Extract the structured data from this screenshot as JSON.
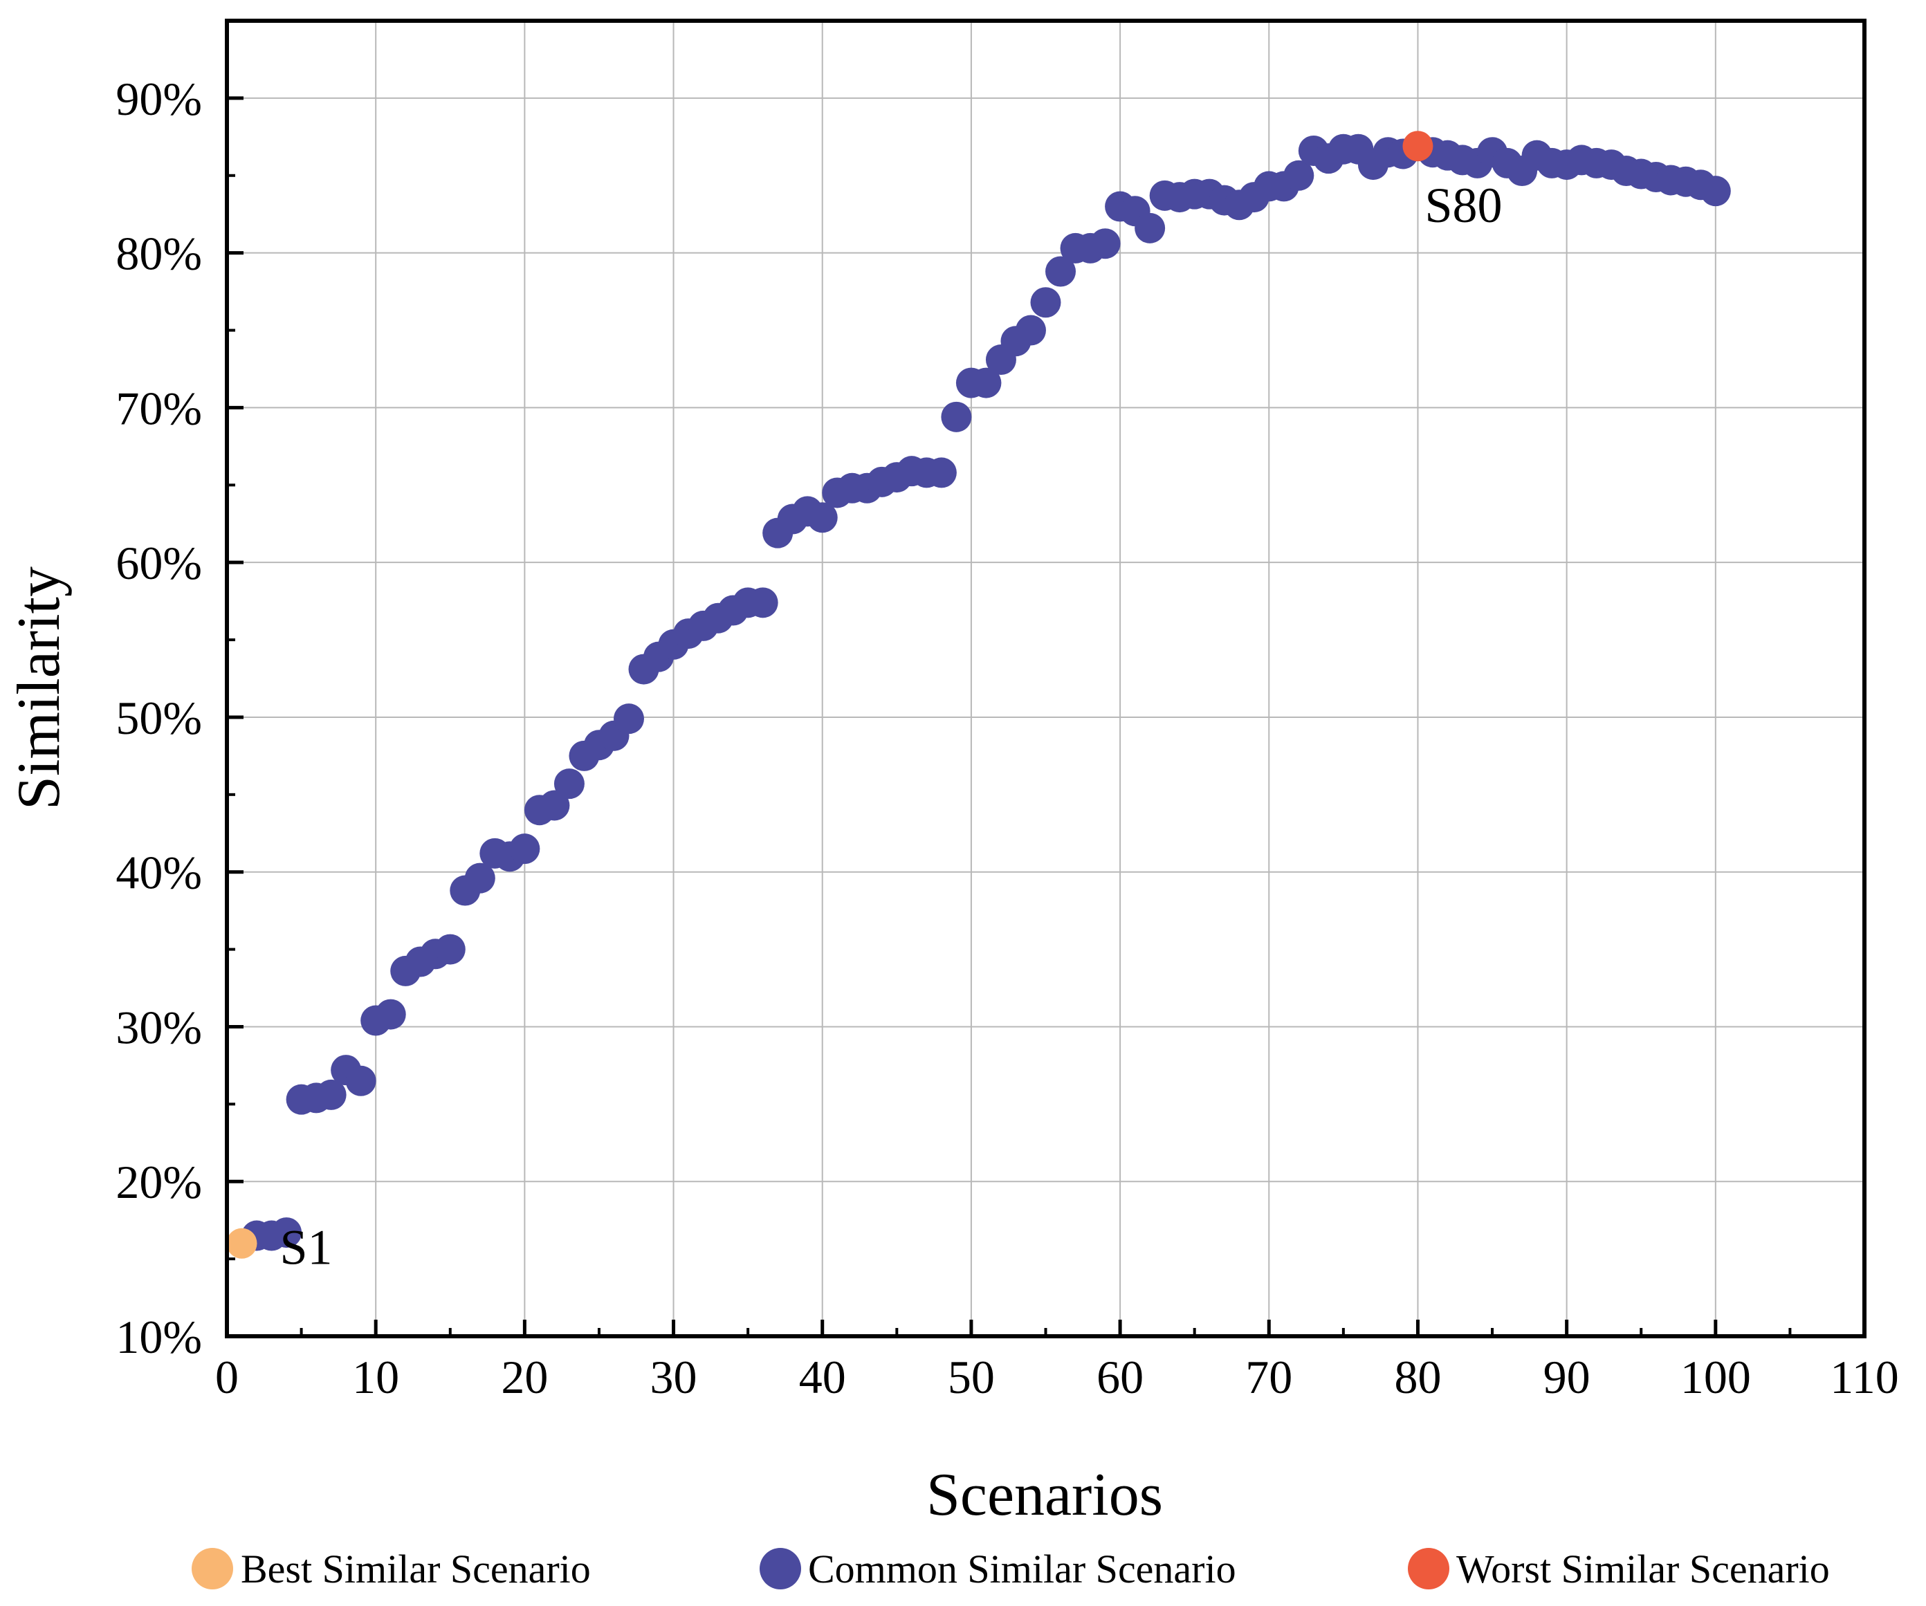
{
  "chart_data": {
    "type": "scatter",
    "title": "",
    "xlabel": "Scenarios",
    "ylabel": "Similarity",
    "xlim": [
      0,
      110
    ],
    "ylim": [
      10,
      95
    ],
    "xticks": [
      0,
      10,
      20,
      30,
      40,
      50,
      60,
      70,
      80,
      90,
      100,
      110
    ],
    "xtick_labels": [
      "0",
      "10",
      "20",
      "30",
      "40",
      "50",
      "60",
      "70",
      "80",
      "90",
      "100",
      "110"
    ],
    "yticks": [
      10,
      20,
      30,
      40,
      50,
      60,
      70,
      80,
      90
    ],
    "ytick_labels": [
      "10%",
      "20%",
      "30%",
      "40%",
      "50%",
      "60%",
      "70%",
      "80%",
      "90%"
    ],
    "grid": true,
    "legend_position": "bottom",
    "colors": {
      "best": "#F9B672",
      "common": "#4A4A9E",
      "worst": "#EE5A3C"
    },
    "series": [
      {
        "name": "Best Similar Scenario",
        "color_key": "best",
        "x": [
          1
        ],
        "y": [
          16.0
        ]
      },
      {
        "name": "Common Similar Scenario",
        "color_key": "common",
        "x": [
          2,
          3,
          4,
          5,
          6,
          7,
          8,
          9,
          10,
          11,
          12,
          13,
          14,
          15,
          16,
          17,
          18,
          19,
          20,
          21,
          22,
          23,
          24,
          25,
          26,
          27,
          28,
          29,
          30,
          31,
          32,
          33,
          34,
          35,
          36,
          37,
          38,
          39,
          40,
          41,
          42,
          43,
          44,
          45,
          46,
          47,
          48,
          49,
          50,
          51,
          52,
          53,
          54,
          55,
          56,
          57,
          58,
          59,
          60,
          61,
          62,
          63,
          64,
          65,
          66,
          67,
          68,
          69,
          70,
          71,
          72,
          73,
          74,
          75,
          76,
          77,
          78,
          79,
          81,
          82,
          83,
          84,
          85,
          86,
          87,
          88,
          89,
          90,
          91,
          92,
          93,
          94,
          95,
          96,
          97,
          98,
          99,
          100
        ],
        "y": [
          16.5,
          16.5,
          16.7,
          25.3,
          25.4,
          25.6,
          27.2,
          26.5,
          30.4,
          30.8,
          33.6,
          34.2,
          34.7,
          35.0,
          38.8,
          39.6,
          41.2,
          41.0,
          41.5,
          44.0,
          44.3,
          45.7,
          47.5,
          48.2,
          48.8,
          49.9,
          53.1,
          53.9,
          54.7,
          55.4,
          55.9,
          56.4,
          56.9,
          57.4,
          57.4,
          61.9,
          62.8,
          63.3,
          62.9,
          64.5,
          64.8,
          64.8,
          65.2,
          65.5,
          65.9,
          65.8,
          65.8,
          69.4,
          71.6,
          71.6,
          73.1,
          74.3,
          75.0,
          76.8,
          78.8,
          80.3,
          80.3,
          80.6,
          83.0,
          82.7,
          81.6,
          83.7,
          83.6,
          83.8,
          83.8,
          83.4,
          83.1,
          83.6,
          84.3,
          84.3,
          85.0,
          86.6,
          86.1,
          86.7,
          86.7,
          85.7,
          86.5,
          86.4,
          86.5,
          86.3,
          86.0,
          85.8,
          86.5,
          85.8,
          85.3,
          86.3,
          85.8,
          85.7,
          86.0,
          85.8,
          85.7,
          85.3,
          85.1,
          84.9,
          84.7,
          84.6,
          84.4,
          84.0
        ]
      },
      {
        "name": "Worst Similar Scenario",
        "color_key": "worst",
        "x": [
          80
        ],
        "y": [
          86.9
        ]
      }
    ],
    "annotations": [
      {
        "text": "S1",
        "x": 1,
        "y": 16.0
      },
      {
        "text": "S80",
        "x": 80,
        "y": 86.9
      }
    ]
  }
}
